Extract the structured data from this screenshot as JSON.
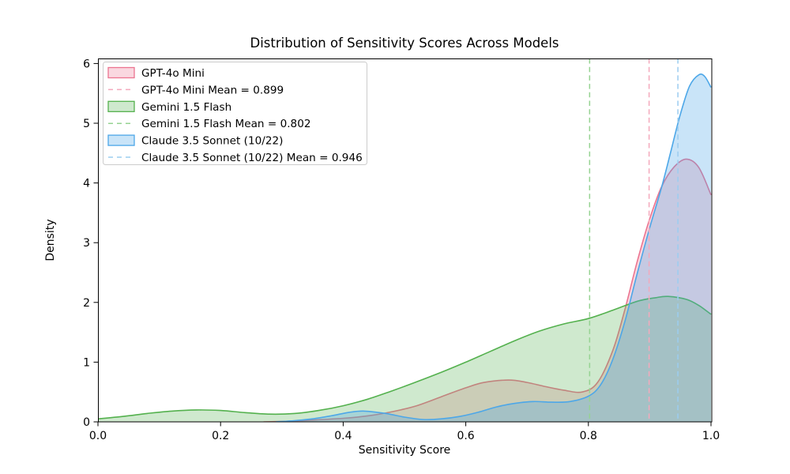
{
  "chart_data": {
    "type": "area",
    "subtype": "kde-density",
    "title": "Distribution of Sensitivity Scores Across Models",
    "xlabel": "Sensitivity Score",
    "ylabel": "Density",
    "xlim": [
      0.0,
      1.0
    ],
    "ylim": [
      0,
      6.08
    ],
    "xtick_labels": [
      "0.0",
      "0.2",
      "0.4",
      "0.6",
      "0.8",
      "1.0"
    ],
    "ytick_labels": [
      "0",
      "1",
      "2",
      "3",
      "4",
      "5",
      "6"
    ],
    "grid": false,
    "legend_position": "upper left",
    "axis_color": "#000000",
    "legend_border_color": "#cccccc",
    "series": [
      {
        "name": "GPT-4o Mini",
        "mean": 0.899,
        "mean_label": "GPT-4o Mini Mean = 0.899",
        "line_color": "#ec7490",
        "fill_color": "rgba(236,116,144,0.28)",
        "mean_line_color": "#f4a9bc",
        "points": [
          [
            0.27,
            0.0
          ],
          [
            0.31,
            0.01
          ],
          [
            0.35,
            0.03
          ],
          [
            0.4,
            0.06
          ],
          [
            0.44,
            0.1
          ],
          [
            0.48,
            0.17
          ],
          [
            0.52,
            0.27
          ],
          [
            0.56,
            0.42
          ],
          [
            0.6,
            0.57
          ],
          [
            0.63,
            0.66
          ],
          [
            0.67,
            0.7
          ],
          [
            0.7,
            0.66
          ],
          [
            0.73,
            0.59
          ],
          [
            0.76,
            0.53
          ],
          [
            0.79,
            0.5
          ],
          [
            0.815,
            0.66
          ],
          [
            0.84,
            1.2
          ],
          [
            0.86,
            1.9
          ],
          [
            0.88,
            2.7
          ],
          [
            0.9,
            3.4
          ],
          [
            0.92,
            3.95
          ],
          [
            0.94,
            4.27
          ],
          [
            0.96,
            4.4
          ],
          [
            0.98,
            4.26
          ],
          [
            1.0,
            3.8
          ]
        ]
      },
      {
        "name": "Gemini 1.5 Flash",
        "mean": 0.802,
        "mean_label": "Gemini 1.5 Flash Mean = 0.802",
        "line_color": "#54b14e",
        "fill_color": "rgba(84,177,78,0.28)",
        "mean_line_color": "#96d392",
        "points": [
          [
            0.0,
            0.05
          ],
          [
            0.04,
            0.09
          ],
          [
            0.08,
            0.14
          ],
          [
            0.12,
            0.18
          ],
          [
            0.16,
            0.2
          ],
          [
            0.2,
            0.19
          ],
          [
            0.24,
            0.155
          ],
          [
            0.28,
            0.13
          ],
          [
            0.32,
            0.14
          ],
          [
            0.36,
            0.19
          ],
          [
            0.4,
            0.27
          ],
          [
            0.44,
            0.38
          ],
          [
            0.48,
            0.52
          ],
          [
            0.52,
            0.67
          ],
          [
            0.56,
            0.83
          ],
          [
            0.6,
            1.0
          ],
          [
            0.64,
            1.18
          ],
          [
            0.68,
            1.36
          ],
          [
            0.72,
            1.52
          ],
          [
            0.76,
            1.64
          ],
          [
            0.8,
            1.73
          ],
          [
            0.84,
            1.87
          ],
          [
            0.88,
            2.02
          ],
          [
            0.91,
            2.08
          ],
          [
            0.93,
            2.1
          ],
          [
            0.96,
            2.05
          ],
          [
            0.98,
            1.95
          ],
          [
            1.0,
            1.8
          ]
        ]
      },
      {
        "name": "Claude 3.5 Sonnet (10/22)",
        "mean": 0.946,
        "mean_label": "Claude 3.5 Sonnet (10/22) Mean = 0.946",
        "line_color": "#4da7e8",
        "fill_color": "rgba(77,167,232,0.30)",
        "mean_line_color": "#9ccdf0",
        "points": [
          [
            0.29,
            0.0
          ],
          [
            0.32,
            0.02
          ],
          [
            0.35,
            0.05
          ],
          [
            0.38,
            0.1
          ],
          [
            0.41,
            0.16
          ],
          [
            0.435,
            0.18
          ],
          [
            0.47,
            0.14
          ],
          [
            0.5,
            0.08
          ],
          [
            0.53,
            0.04
          ],
          [
            0.56,
            0.05
          ],
          [
            0.59,
            0.09
          ],
          [
            0.62,
            0.16
          ],
          [
            0.65,
            0.25
          ],
          [
            0.68,
            0.31
          ],
          [
            0.71,
            0.34
          ],
          [
            0.74,
            0.33
          ],
          [
            0.77,
            0.34
          ],
          [
            0.8,
            0.43
          ],
          [
            0.82,
            0.62
          ],
          [
            0.84,
            1.05
          ],
          [
            0.86,
            1.7
          ],
          [
            0.88,
            2.5
          ],
          [
            0.9,
            3.25
          ],
          [
            0.92,
            3.95
          ],
          [
            0.935,
            4.55
          ],
          [
            0.95,
            5.15
          ],
          [
            0.965,
            5.62
          ],
          [
            0.98,
            5.81
          ],
          [
            0.99,
            5.78
          ],
          [
            1.0,
            5.6
          ]
        ]
      }
    ]
  }
}
